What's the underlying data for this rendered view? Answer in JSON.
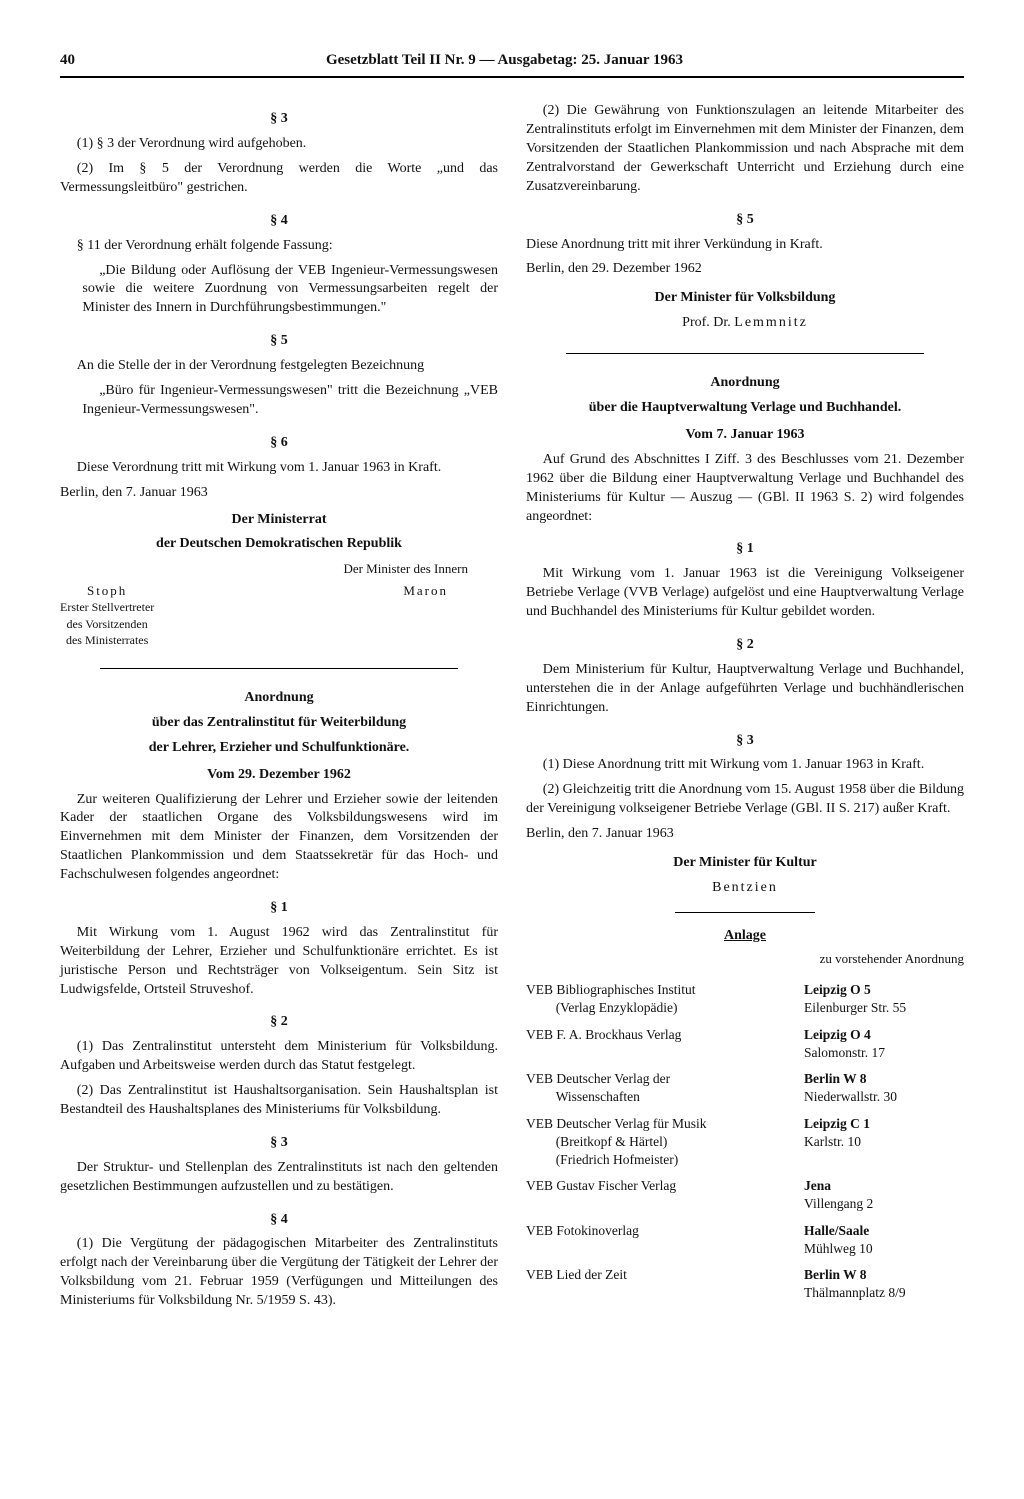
{
  "header": {
    "page_number": "40",
    "title": "Gesetzblatt Teil II Nr. 9 — Ausgabetag: 25. Januar 1963"
  },
  "left": {
    "s3_head": "§ 3",
    "s3_p1": "(1) § 3 der Verordnung wird aufgehoben.",
    "s3_p2": "(2) Im § 5 der Verordnung werden die Worte „und das Vermessungsleitbüro\" gestrichen.",
    "s4_head": "§ 4",
    "s4_p1": "§ 11 der Verordnung erhält folgende Fassung:",
    "s4_q": "„Die Bildung oder Auflösung der VEB Ingenieur-Vermessungswesen sowie die weitere Zuordnung von Vermessungsarbeiten regelt der Minister des Innern in Durchführungsbestimmungen.\"",
    "s5_head": "§ 5",
    "s5_p1": "An die Stelle der in der Verordnung festgelegten Bezeichnung",
    "s5_q": "„Büro für Ingenieur-Vermessungswesen\" tritt die Bezeichnung „VEB Ingenieur-Vermessungswesen\".",
    "s6_head": "§ 6",
    "s6_p1": "Diese Verordnung tritt mit Wirkung vom 1. Januar 1963 in Kraft.",
    "s6_date": "Berlin, den 7. Januar 1963",
    "sig1_l1": "Der Ministerrat",
    "sig1_l2": "der Deutschen Demokratischen Republik",
    "sig1_rlabel": "Der Minister des Innern",
    "sig1_rname": "Maron",
    "sig1_lname": "Stoph",
    "sig1_lsub1": "Erster Stellvertreter",
    "sig1_lsub2": "des Vorsitzenden",
    "sig1_lsub3": "des Ministerrates",
    "ao1_title1": "Anordnung",
    "ao1_title2": "über das Zentralinstitut für Weiterbildung",
    "ao1_title3": "der Lehrer, Erzieher und Schulfunktionäre.",
    "ao1_date": "Vom 29. Dezember 1962",
    "ao1_intro": "Zur weiteren Qualifizierung der Lehrer und Erzieher sowie der leitenden Kader der staatlichen Organe des Volksbildungswesens wird im Einvernehmen mit dem Minister der Finanzen, dem Vorsitzenden der Staatlichen Plankommission und dem Staatssekretär für das Hoch- und Fachschulwesen folgendes angeordnet:",
    "ao1_s1h": "§ 1",
    "ao1_s1": "Mit Wirkung vom 1. August 1962 wird das Zentralinstitut für Weiterbildung der Lehrer, Erzieher und Schulfunktionäre errichtet. Es ist juristische Person und Rechtsträger von Volkseigentum. Sein Sitz ist Ludwigsfelde, Ortsteil Struveshof.",
    "ao1_s2h": "§ 2",
    "ao1_s2_1": "(1) Das Zentralinstitut untersteht dem Ministerium für Volksbildung. Aufgaben und Arbeitsweise werden durch das Statut festgelegt.",
    "ao1_s2_2": "(2) Das Zentralinstitut ist Haushaltsorganisation. Sein Haushaltsplan ist Bestandteil des Haushaltsplanes des Ministeriums für Volksbildung.",
    "ao1_s3h": "§ 3",
    "ao1_s3": "Der Struktur- und Stellenplan des Zentralinstituts ist nach den geltenden gesetzlichen Bestimmungen aufzustellen und zu bestätigen.",
    "ao1_s4h": "§ 4",
    "ao1_s4_1": "(1) Die Vergütung der pädagogischen Mitarbeiter des Zentralinstituts erfolgt nach der Vereinbarung über die Vergütung der Tätigkeit der Lehrer der Volksbildung vom 21. Februar 1959 (Verfügungen und Mitteilungen des Ministeriums für Volksbildung Nr. 5/1959 S. 43)."
  },
  "right": {
    "ao1_s4_2": "(2) Die Gewährung von Funktionszulagen an leitende Mitarbeiter des Zentralinstituts erfolgt im Einvernehmen mit dem Minister der Finanzen, dem Vorsitzenden der Staatlichen Plankommission und nach Absprache mit dem Zentralvorstand der Gewerkschaft Unterricht und Erziehung durch eine Zusatzvereinbarung.",
    "ao1_s5h": "§ 5",
    "ao1_s5": "Diese Anordnung tritt mit ihrer Verkündung in Kraft.",
    "ao1_date2": "Berlin, den 29. Dezember 1962",
    "ao1_sig_l1": "Der Minister für Volksbildung",
    "ao1_sig_l2": "Prof. Dr. Lemmnitz",
    "ao2_title1": "Anordnung",
    "ao2_title2": "über die Hauptverwaltung Verlage und Buchhandel.",
    "ao2_date": "Vom 7. Januar 1963",
    "ao2_intro": "Auf Grund des Abschnittes I Ziff. 3 des Beschlusses vom 21. Dezember 1962 über die Bildung einer Hauptverwaltung Verlage und Buchhandel des Ministeriums für Kultur — Auszug — (GBl. II 1963 S. 2) wird folgendes angeordnet:",
    "ao2_s1h": "§ 1",
    "ao2_s1": "Mit Wirkung vom 1. Januar 1963 ist die Vereinigung Volkseigener Betriebe Verlage (VVB Verlage) aufgelöst und eine Hauptverwaltung Verlage und Buchhandel des Ministeriums für Kultur gebildet worden.",
    "ao2_s2h": "§ 2",
    "ao2_s2": "Dem Ministerium für Kultur, Hauptverwaltung Verlage und Buchhandel, unterstehen die in der Anlage aufgeführten Verlage und buchhändlerischen Einrichtungen.",
    "ao2_s3h": "§ 3",
    "ao2_s3_1": "(1) Diese Anordnung tritt mit Wirkung vom 1. Januar 1963 in Kraft.",
    "ao2_s3_2": "(2) Gleichzeitig tritt die Anordnung vom 15. August 1958 über die Bildung der Vereinigung volkseigener Betriebe Verlage (GBl. II S. 217) außer Kraft.",
    "ao2_date2": "Berlin, den 7. Januar 1963",
    "ao2_sig_l1": "Der Minister für Kultur",
    "ao2_sig_l2": "Bentzien",
    "anlage_title": "Anlage",
    "anlage_sub": "zu vorstehender Anordnung",
    "anlage": [
      {
        "name": "VEB Bibliographisches Institut",
        "sub": "(Verlag Enzyklopädie)",
        "city": "Leipzig O 5",
        "street": "Eilenburger Str. 55"
      },
      {
        "name": "VEB F. A. Brockhaus Verlag",
        "sub": "",
        "city": "Leipzig O 4",
        "street": "Salomonstr. 17"
      },
      {
        "name": "VEB Deutscher Verlag der",
        "sub": "Wissenschaften",
        "city": "Berlin W 8",
        "street": "Niederwallstr. 30"
      },
      {
        "name": "VEB Deutscher Verlag für Musik",
        "sub": "(Breitkopf & Härtel)\n(Friedrich Hofmeister)",
        "city": "Leipzig C 1",
        "street": "Karlstr. 10"
      },
      {
        "name": "VEB Gustav Fischer Verlag",
        "sub": "",
        "city": "Jena",
        "street": "Villengang 2"
      },
      {
        "name": "VEB Fotokinoverlag",
        "sub": "",
        "city": "Halle/Saale",
        "street": "Mühlweg 10"
      },
      {
        "name": "VEB Lied der Zeit",
        "sub": "",
        "city": "Berlin W 8",
        "street": "Thälmannplatz 8/9"
      }
    ]
  }
}
